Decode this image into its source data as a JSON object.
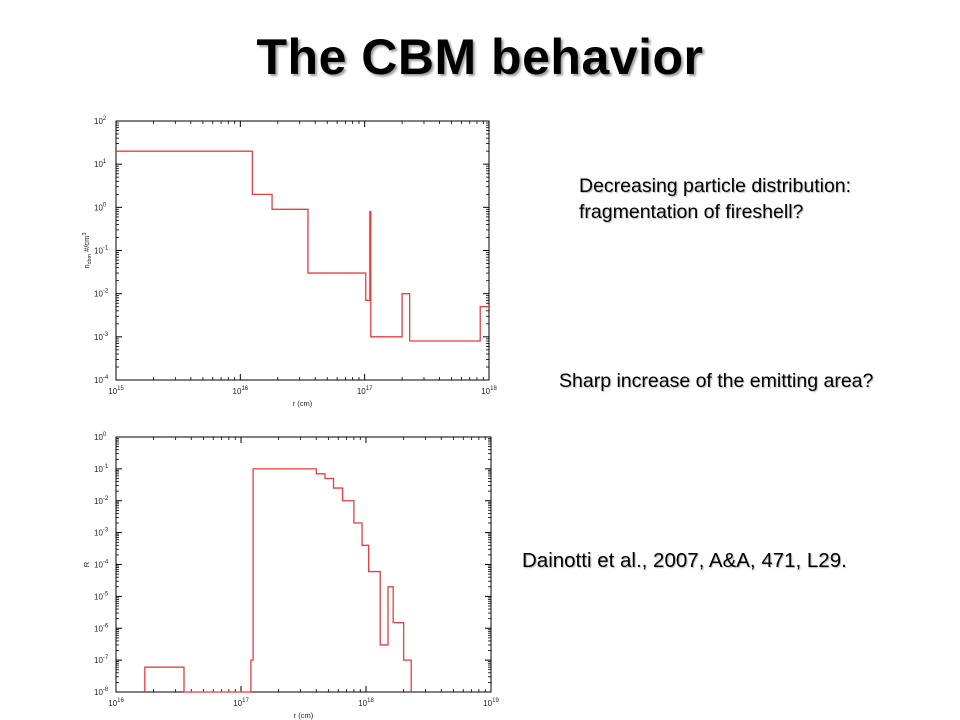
{
  "title": "The CBM behavior",
  "notes": {
    "fragmentation": "Decreasing particle distribution: fragmentation of fireshell?",
    "emitting_area": "Sharp increase of the emitting area?",
    "reference": "Dainotti et al., 2007, A&A, 471, L29."
  },
  "colors": {
    "line": "#ee3b3b",
    "frame": "#000000"
  },
  "chart_data": [
    {
      "type": "line",
      "step": true,
      "xlabel": "r (cm)",
      "ylabel": "n_cbm #/cm^3",
      "ylabel_main": "n",
      "ylabel_sub": "cbm",
      "ylabel_rest": " #/cm",
      "ylabel_exp": "3",
      "xscale": "log",
      "yscale": "log",
      "xlim": [
        1000000000000000.0,
        1e+18
      ],
      "ylim": [
        0.0001,
        100.0
      ],
      "xticks": [
        {
          "b": "10",
          "e": "15",
          "v": 1000000000000000.0
        },
        {
          "b": "10",
          "e": "16",
          "v": 1e+16
        },
        {
          "b": "10",
          "e": "17",
          "v": 1e+17
        },
        {
          "b": "10",
          "e": "18",
          "v": 1e+18
        }
      ],
      "yticks": [
        {
          "b": "10",
          "e": "2",
          "v": 100.0
        },
        {
          "b": "10",
          "e": "1",
          "v": 10.0
        },
        {
          "b": "10",
          "e": "0",
          "v": 1.0
        },
        {
          "b": "10",
          "e": "-1",
          "v": 0.1
        },
        {
          "b": "10",
          "e": "-2",
          "v": 0.01
        },
        {
          "b": "10",
          "e": "-3",
          "v": 0.001
        },
        {
          "b": "10",
          "e": "-4",
          "v": 0.0001
        }
      ],
      "grid": false,
      "series": [
        {
          "x": [
            1000000000000000.0,
            1.25e+16,
            1.25e+16,
            1.8e+16,
            1.8e+16,
            3.5e+16,
            3.5e+16,
            1.02e+17,
            1.02e+17,
            1.1e+17,
            1.1e+17,
            1.12e+17,
            1.12e+17,
            2e+17,
            2e+17,
            2.3e+17,
            2.3e+17,
            8.5e+17,
            8.5e+17,
            1e+18
          ],
          "y": [
            20,
            20,
            2,
            2,
            0.9,
            0.9,
            0.03,
            0.03,
            0.007,
            0.007,
            0.8,
            0.8,
            0.001,
            0.001,
            0.01,
            0.01,
            0.0008,
            0.0008,
            0.005,
            0.005
          ]
        }
      ]
    },
    {
      "type": "line",
      "step": true,
      "xlabel": "r (cm)",
      "ylabel": "R",
      "xscale": "log",
      "yscale": "log",
      "xlim": [
        1e+16,
        1e+19
      ],
      "ylim": [
        1e-08,
        1
      ],
      "xticks": [
        {
          "b": "10",
          "e": "16",
          "v": 1e+16
        },
        {
          "b": "10",
          "e": "17",
          "v": 1e+17
        },
        {
          "b": "10",
          "e": "18",
          "v": 1e+18
        },
        {
          "b": "10",
          "e": "19",
          "v": 1e+19
        }
      ],
      "yticks": [
        {
          "b": "10",
          "e": "0",
          "v": 1
        },
        {
          "b": "10",
          "e": "-1",
          "v": 0.1
        },
        {
          "b": "10",
          "e": "-2",
          "v": 0.01
        },
        {
          "b": "10",
          "e": "-3",
          "v": 0.001
        },
        {
          "b": "10",
          "e": "-4",
          "v": 0.0001
        },
        {
          "b": "10",
          "e": "-5",
          "v": 1e-05
        },
        {
          "b": "10",
          "e": "-6",
          "v": 1e-06
        },
        {
          "b": "10",
          "e": "-7",
          "v": 1e-07
        },
        {
          "b": "10",
          "e": "-8",
          "v": 1e-08
        }
      ],
      "grid": false,
      "series": [
        {
          "x": [
            1.7e+16,
            1.7e+16,
            3.5e+16,
            3.5e+16,
            1.2e+17,
            1.2e+17,
            1.25e+17,
            1.25e+17,
            4e+17,
            4e+17,
            4.7e+17,
            4.7e+17,
            5.5e+17,
            5.5e+17,
            6.5e+17,
            6.5e+17,
            8e+17,
            8e+17,
            9.3e+17,
            9.3e+17,
            1.05e+18,
            1.05e+18,
            1.3e+18,
            1.3e+18,
            1.5e+18,
            1.5e+18,
            1.65e+18,
            1.65e+18,
            2e+18,
            2e+18,
            2.3e+18,
            2.3e+18
          ],
          "y": [
            1e-08,
            6e-08,
            6e-08,
            1e-08,
            1e-08,
            1e-07,
            1e-07,
            0.1,
            0.1,
            0.07,
            0.07,
            0.05,
            0.05,
            0.025,
            0.025,
            0.01,
            0.01,
            0.002,
            0.002,
            0.0004,
            0.0004,
            6e-05,
            6e-05,
            3e-07,
            3e-07,
            2e-05,
            2e-05,
            1.5e-06,
            1.5e-06,
            1e-07,
            1e-07,
            1e-08
          ]
        }
      ]
    }
  ]
}
